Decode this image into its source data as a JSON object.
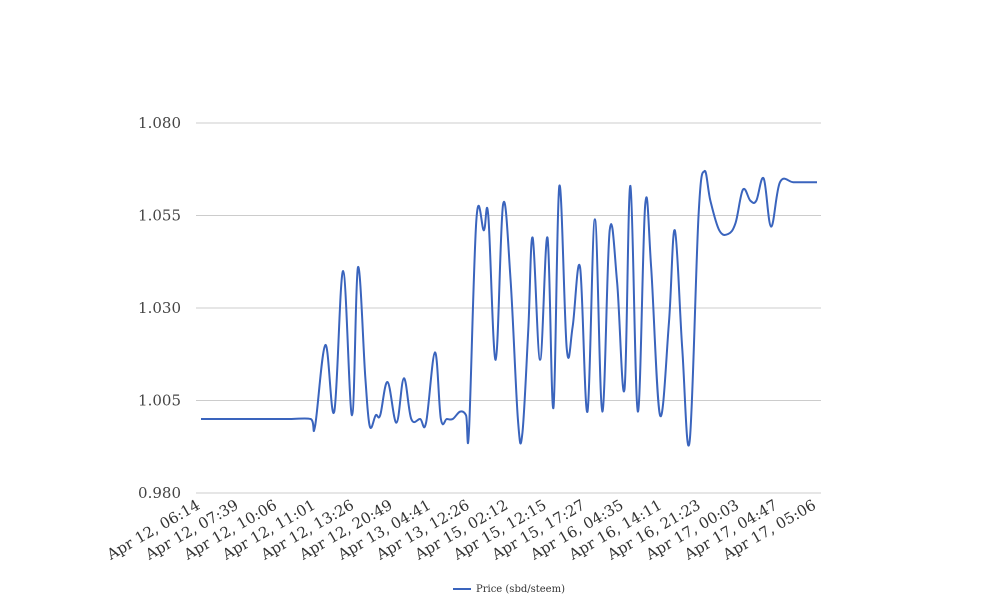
{
  "chart_data": {
    "type": "line",
    "grid": true,
    "legend_position": "bottom",
    "ylim": [
      0.98,
      1.08
    ],
    "y_ticks": [
      "0.980",
      "1.005",
      "1.030",
      "1.055",
      "1.080"
    ],
    "x_ticks": [
      "Apr 12, 06:14",
      "Apr 12, 07:39",
      "Apr 12, 10:06",
      "Apr 12, 11:01",
      "Apr 12, 13:26",
      "Apr 12, 20:49",
      "Apr 13, 04:41",
      "Apr 13, 12:26",
      "Apr 15, 02:12",
      "Apr 15, 12:15",
      "Apr 15, 17:27",
      "Apr 16, 04:35",
      "Apr 16, 14:11",
      "Apr 16, 21:23",
      "Apr 17, 00:03",
      "Apr 17, 04:47",
      "Apr 17, 05:06"
    ],
    "series": [
      {
        "name": "Price (sbd/steem)",
        "color": "#3a64bd",
        "points": [
          [
            0.0,
            1.0
          ],
          [
            0.3,
            1.0
          ],
          [
            1.0,
            1.0
          ],
          [
            2.0,
            1.0
          ],
          [
            3.0,
            1.0
          ],
          [
            3.7,
            1.0
          ],
          [
            3.85,
            0.998
          ],
          [
            4.2,
            1.02
          ],
          [
            4.5,
            1.002
          ],
          [
            4.8,
            1.04
          ],
          [
            5.1,
            1.001
          ],
          [
            5.3,
            1.041
          ],
          [
            5.55,
            1.011
          ],
          [
            5.7,
            0.998
          ],
          [
            5.9,
            1.001
          ],
          [
            6.05,
            1.001
          ],
          [
            6.3,
            1.01
          ],
          [
            6.6,
            0.999
          ],
          [
            6.85,
            1.011
          ],
          [
            7.1,
            1.0
          ],
          [
            7.4,
            1.0
          ],
          [
            7.6,
            0.999
          ],
          [
            7.9,
            1.018
          ],
          [
            8.1,
            1.0
          ],
          [
            8.3,
            1.0
          ],
          [
            8.5,
            1.0
          ],
          [
            8.75,
            1.002
          ],
          [
            8.95,
            1.001
          ],
          [
            9.05,
            0.997
          ],
          [
            9.3,
            1.054
          ],
          [
            9.55,
            1.051
          ],
          [
            9.7,
            1.055
          ],
          [
            9.95,
            1.016
          ],
          [
            10.2,
            1.058
          ],
          [
            10.45,
            1.038
          ],
          [
            10.7,
            1.0
          ],
          [
            10.85,
            0.996
          ],
          [
            11.05,
            1.024
          ],
          [
            11.2,
            1.049
          ],
          [
            11.45,
            1.016
          ],
          [
            11.7,
            1.049
          ],
          [
            11.9,
            1.003
          ],
          [
            12.1,
            1.063
          ],
          [
            12.35,
            1.019
          ],
          [
            12.55,
            1.025
          ],
          [
            12.8,
            1.041
          ],
          [
            13.05,
            1.002
          ],
          [
            13.3,
            1.054
          ],
          [
            13.55,
            1.002
          ],
          [
            13.8,
            1.051
          ],
          [
            14.05,
            1.037
          ],
          [
            14.3,
            1.008
          ],
          [
            14.5,
            1.063
          ],
          [
            14.75,
            1.002
          ],
          [
            15.0,
            1.058
          ],
          [
            15.2,
            1.041
          ],
          [
            15.5,
            1.001
          ],
          [
            15.8,
            1.026
          ],
          [
            16.0,
            1.051
          ],
          [
            16.25,
            1.019
          ],
          [
            16.5,
            0.994
          ],
          [
            16.8,
            1.055
          ],
          [
            17.0,
            1.067
          ],
          [
            17.2,
            1.059
          ],
          [
            17.5,
            1.051
          ],
          [
            17.8,
            1.05
          ],
          [
            18.05,
            1.053
          ],
          [
            18.3,
            1.062
          ],
          [
            18.55,
            1.059
          ],
          [
            18.75,
            1.059
          ],
          [
            19.0,
            1.065
          ],
          [
            19.25,
            1.052
          ],
          [
            19.55,
            1.064
          ],
          [
            20.0,
            1.064
          ],
          [
            20.5,
            1.064
          ],
          [
            20.8,
            1.064
          ]
        ]
      }
    ]
  }
}
